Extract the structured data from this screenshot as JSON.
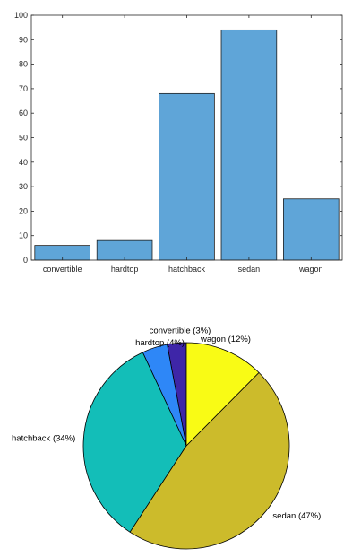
{
  "chart_data": [
    {
      "type": "bar",
      "categories": [
        "convertible",
        "hardtop",
        "hatchback",
        "sedan",
        "wagon"
      ],
      "values": [
        6,
        8,
        68,
        94,
        25
      ],
      "ylim": [
        0,
        100
      ],
      "yticks": [
        "0",
        "10",
        "20",
        "30",
        "40",
        "50",
        "60",
        "70",
        "80",
        "90",
        "100"
      ],
      "bar_color": "#5fa5d8",
      "grid": false
    },
    {
      "type": "pie",
      "labels": [
        "convertible",
        "hardtop",
        "hatchback",
        "sedan",
        "wagon"
      ],
      "values": [
        6,
        8,
        68,
        94,
        25
      ],
      "slice_labels": [
        "convertible  (3%)",
        "hardtop  (4%)",
        "hatchback (34%)",
        "sedan (47%)",
        "wagon (12%)"
      ],
      "colors": [
        "#3e26a8",
        "#2e87f7",
        "#13beb8",
        "#ccbb2b",
        "#f9fb15"
      ]
    }
  ]
}
